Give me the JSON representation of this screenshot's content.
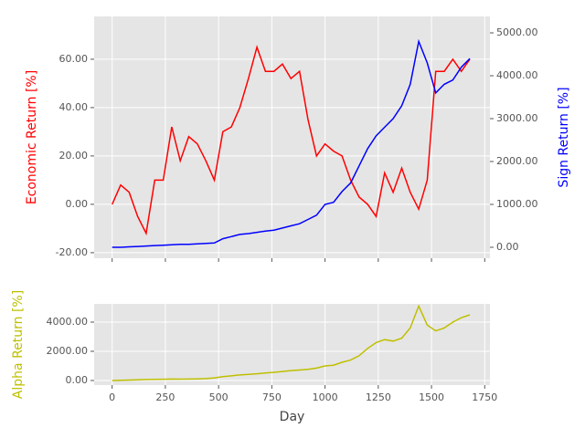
{
  "chart_data": [
    {
      "type": "line",
      "ylabel": "Economic Return [%]",
      "y2label": "Sign Return [%]",
      "x": [
        0,
        40,
        80,
        120,
        160,
        200,
        240,
        280,
        320,
        360,
        400,
        440,
        480,
        520,
        560,
        600,
        640,
        680,
        720,
        760,
        800,
        840,
        880,
        920,
        960,
        1000,
        1040,
        1080,
        1120,
        1160,
        1200,
        1240,
        1280,
        1320,
        1360,
        1400,
        1440,
        1480,
        1520,
        1560,
        1600,
        1640,
        1680
      ],
      "series": [
        {
          "color": "#ff0000",
          "values": [
            0,
            8,
            5,
            -5,
            -12,
            10,
            10,
            32,
            18,
            28,
            25,
            18,
            10,
            30,
            32,
            40,
            52,
            65,
            55,
            55,
            58,
            52,
            55,
            35,
            20,
            25,
            22,
            20,
            10,
            3,
            0,
            -5,
            13,
            5,
            15,
            5,
            -2,
            10,
            55,
            55,
            60,
            55,
            60
          ]
        },
        {
          "color": "#0000ff",
          "axis": "y2",
          "values": [
            0,
            0,
            10,
            20,
            30,
            40,
            50,
            60,
            70,
            70,
            80,
            90,
            100,
            200,
            250,
            300,
            320,
            350,
            380,
            400,
            450,
            500,
            550,
            650,
            750,
            1000,
            1050,
            1300,
            1500,
            1900,
            2300,
            2600,
            2800,
            3000,
            3300,
            3800,
            4800,
            4300,
            3600,
            3800,
            3900,
            4200,
            4400
          ]
        }
      ],
      "xlim": [
        -84.5,
        1774.5
      ],
      "xticks": [
        0,
        250,
        500,
        750,
        1000,
        1250,
        1500,
        1750
      ],
      "ylim": [
        -22.3,
        77.7
      ],
      "yticks": [
        {
          "value": -20,
          "label": "-20.00"
        },
        {
          "value": 0,
          "label": "0.00"
        },
        {
          "value": 20,
          "label": "20.00"
        },
        {
          "value": 40,
          "label": "40.00"
        },
        {
          "value": 60,
          "label": "60.00"
        }
      ],
      "y2lim": [
        -255,
        5383
      ],
      "y2ticks": [
        {
          "value": 0,
          "label": "0.00"
        },
        {
          "value": 1000,
          "label": "1000.00"
        },
        {
          "value": 2000,
          "label": "2000.00"
        },
        {
          "value": 3000,
          "label": "3000.00"
        },
        {
          "value": 4000,
          "label": "4000.00"
        },
        {
          "value": 5000,
          "label": "5000.00"
        }
      ],
      "grid": true
    },
    {
      "type": "line",
      "ylabel": "Alpha Return [%]",
      "xlabel": "Day",
      "x": [
        0,
        40,
        80,
        120,
        160,
        200,
        240,
        280,
        320,
        360,
        400,
        440,
        480,
        520,
        560,
        600,
        640,
        680,
        720,
        760,
        800,
        840,
        880,
        920,
        960,
        1000,
        1040,
        1080,
        1120,
        1160,
        1200,
        1240,
        1280,
        1320,
        1360,
        1400,
        1440,
        1480,
        1520,
        1560,
        1600,
        1640,
        1680
      ],
      "series": [
        {
          "color": "#bfbf00",
          "values": [
            0,
            10,
            30,
            50,
            70,
            80,
            90,
            100,
            95,
            100,
            110,
            130,
            180,
            260,
            320,
            380,
            420,
            460,
            520,
            560,
            620,
            680,
            720,
            760,
            850,
            1000,
            1050,
            1250,
            1400,
            1700,
            2200,
            2600,
            2800,
            2700,
            2900,
            3600,
            5100,
            3800,
            3400,
            3600,
            4000,
            4300,
            4500
          ]
        }
      ],
      "xlim": [
        -84.5,
        1774.5
      ],
      "xticks": [
        0,
        250,
        500,
        750,
        1000,
        1250,
        1500,
        1750
      ],
      "ylim": [
        -312,
        5250
      ],
      "yticks": [
        {
          "value": 0,
          "label": "0.00"
        },
        {
          "value": 2000,
          "label": "2000.00"
        },
        {
          "value": 4000,
          "label": "4000.00"
        }
      ],
      "grid": true
    }
  ]
}
